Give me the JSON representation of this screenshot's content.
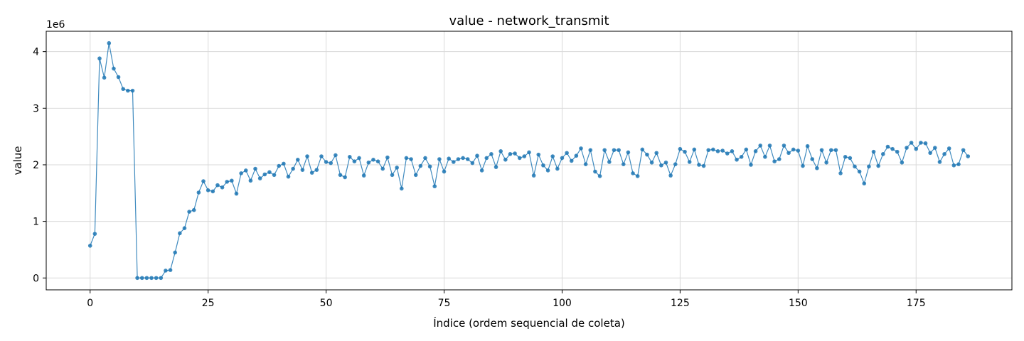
{
  "chart_data": {
    "type": "line",
    "title": "value - network_transmit",
    "xlabel": "Índice (ordem sequencial de coleta)",
    "ylabel": "value",
    "offset_label": "1e6",
    "xlim": [
      -9.3,
      195.3
    ],
    "ylim": [
      -0.21,
      4.36
    ],
    "xticks": [
      0,
      25,
      50,
      75,
      100,
      125,
      150,
      175
    ],
    "yticks": [
      0,
      1,
      2,
      3,
      4
    ],
    "grid": true,
    "line_color": "#1f77b4",
    "series": [
      {
        "values": [
          0.57,
          0.78,
          3.88,
          3.54,
          4.15,
          3.7,
          3.55,
          3.34,
          3.31,
          3.31,
          0.0,
          0.0,
          0.0,
          0.0,
          0.0,
          0.0,
          0.13,
          0.14,
          0.45,
          0.79,
          0.88,
          1.17,
          1.2,
          1.51,
          1.71,
          1.55,
          1.53,
          1.64,
          1.6,
          1.7,
          1.72,
          1.49,
          1.85,
          1.9,
          1.72,
          1.93,
          1.76,
          1.83,
          1.87,
          1.82,
          1.98,
          2.02,
          1.79,
          1.93,
          2.09,
          1.91,
          2.15,
          1.86,
          1.91,
          2.15,
          2.05,
          2.03,
          2.17,
          1.82,
          1.78,
          2.14,
          2.06,
          2.12,
          1.81,
          2.04,
          2.09,
          2.06,
          1.93,
          2.13,
          1.82,
          1.95,
          1.58,
          2.12,
          2.1,
          1.82,
          1.98,
          2.12,
          1.97,
          1.62,
          2.1,
          1.88,
          2.11,
          2.05,
          2.1,
          2.12,
          2.1,
          2.03,
          2.16,
          1.9,
          2.12,
          2.19,
          1.96,
          2.24,
          2.09,
          2.19,
          2.2,
          2.12,
          2.15,
          2.22,
          1.81,
          2.18,
          1.99,
          1.9,
          2.15,
          1.93,
          2.12,
          2.21,
          2.07,
          2.16,
          2.29,
          2.01,
          2.26,
          1.88,
          1.8,
          2.26,
          2.05,
          2.26,
          2.26,
          2.01,
          2.22,
          1.85,
          1.8,
          2.27,
          2.18,
          2.04,
          2.21,
          1.99,
          2.04,
          1.81,
          2.01,
          2.28,
          2.23,
          2.05,
          2.27,
          2.0,
          1.98,
          2.26,
          2.27,
          2.24,
          2.25,
          2.2,
          2.24,
          2.09,
          2.14,
          2.27,
          2.0,
          2.24,
          2.34,
          2.14,
          2.34,
          2.06,
          2.1,
          2.34,
          2.21,
          2.27,
          2.25,
          1.98,
          2.33,
          2.1,
          1.94,
          2.26,
          2.04,
          2.26,
          2.26,
          1.85,
          2.14,
          2.12,
          1.97,
          1.88,
          1.67,
          1.97,
          2.23,
          1.98,
          2.19,
          2.32,
          2.28,
          2.23,
          2.04,
          2.3,
          2.39,
          2.28,
          2.39,
          2.38,
          2.21,
          2.3,
          2.05,
          2.19,
          2.29,
          1.99,
          2.01,
          2.26,
          2.15
        ]
      }
    ]
  }
}
